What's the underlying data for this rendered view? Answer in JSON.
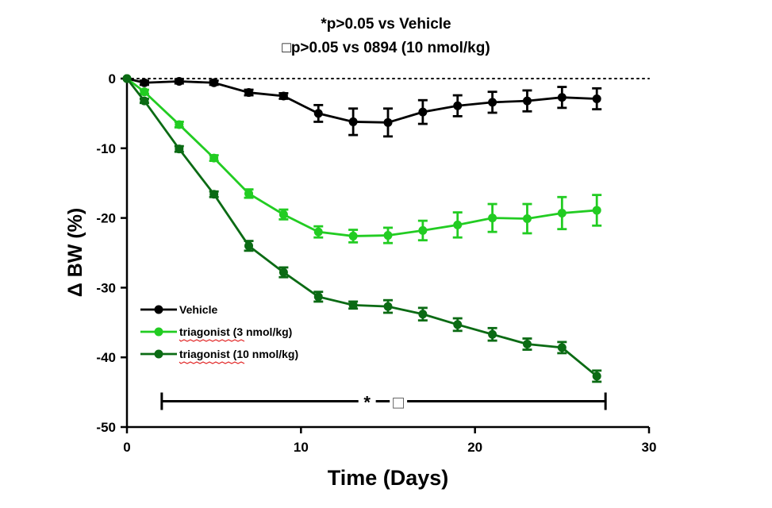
{
  "chart_data": {
    "type": "line",
    "title_lines": [
      "*p>0.05 vs  Vehicle",
      "□p>0.05 vs  0894 (10 nmol/kg)"
    ],
    "xlabel": "Time (Days)",
    "ylabel": "Δ BW (%)",
    "xlim": [
      0,
      30
    ],
    "ylim": [
      -50,
      0
    ],
    "xticks": [
      0,
      10,
      20,
      30
    ],
    "yticks": [
      0,
      -10,
      -20,
      -30,
      -40,
      -50
    ],
    "x": [
      0,
      1,
      3,
      5,
      7,
      9,
      11,
      13,
      15,
      17,
      19,
      21,
      23,
      25,
      27
    ],
    "reference_line_y": 0,
    "legend_position": "bottom-left",
    "series": [
      {
        "name": "Vehicle",
        "color": "#000000",
        "values": [
          0,
          -0.6,
          -0.4,
          -0.6,
          -2.0,
          -2.5,
          -5.0,
          -6.2,
          -6.3,
          -4.8,
          -3.9,
          -3.4,
          -3.2,
          -2.7,
          -2.9
        ],
        "errors": [
          0,
          0.3,
          0.3,
          0.3,
          0.4,
          0.4,
          1.2,
          1.9,
          2.0,
          1.7,
          1.5,
          1.5,
          1.5,
          1.5,
          1.5
        ]
      },
      {
        "name": "triagonist (3  nmol/kg)",
        "color": "#22cc22",
        "values": [
          0,
          -1.9,
          -6.6,
          -11.4,
          -16.5,
          -19.5,
          -22.0,
          -22.6,
          -22.5,
          -21.8,
          -21.0,
          -20.0,
          -20.1,
          -19.3,
          -18.9
        ],
        "errors": [
          0,
          0.3,
          0.4,
          0.4,
          0.6,
          0.7,
          0.8,
          0.9,
          1.1,
          1.4,
          1.8,
          2.0,
          2.1,
          2.3,
          2.2
        ]
      },
      {
        "name": "triagonist (10  nmol/kg)",
        "color": "#0b6b14",
        "values": [
          0,
          -3.2,
          -10.1,
          -16.6,
          -24.0,
          -27.8,
          -31.3,
          -32.5,
          -32.7,
          -33.8,
          -35.3,
          -36.7,
          -38.1,
          -38.6,
          -42.7
        ],
        "errors": [
          0,
          0.3,
          0.4,
          0.4,
          0.7,
          0.7,
          0.7,
          0.5,
          0.9,
          0.9,
          0.9,
          0.9,
          0.8,
          0.8,
          0.8
        ]
      }
    ],
    "significance_bar": {
      "x_start": 2,
      "x_end": 27.5,
      "y": -46.3,
      "label_star": "*",
      "label_box": "□"
    }
  }
}
